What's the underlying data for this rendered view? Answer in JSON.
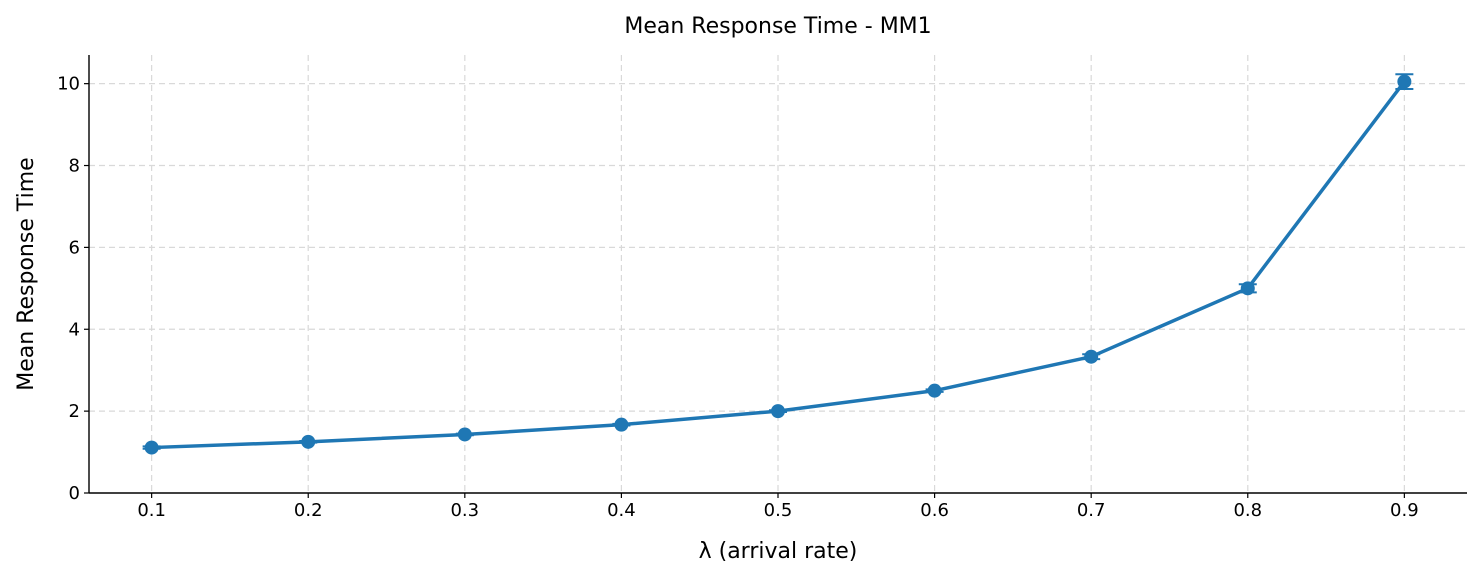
{
  "chart_data": {
    "type": "line",
    "title": "Mean Response Time - MM1",
    "xlabel": "λ (arrival rate)",
    "ylabel": "Mean Response Time",
    "x": [
      0.1,
      0.2,
      0.3,
      0.4,
      0.5,
      0.6,
      0.7,
      0.8,
      0.9
    ],
    "series": [
      {
        "values": [
          1.11,
          1.25,
          1.43,
          1.67,
          2.0,
          2.5,
          3.33,
          5.0,
          10.05
        ],
        "errors": [
          0.03,
          0.02,
          0.02,
          0.02,
          0.02,
          0.03,
          0.06,
          0.1,
          0.18
        ],
        "color": "#1f77b4"
      }
    ],
    "xlim": [
      0.06,
      0.94
    ],
    "ylim": [
      0,
      10.7
    ],
    "x_ticks": [
      "0.1",
      "0.2",
      "0.3",
      "0.4",
      "0.5",
      "0.6",
      "0.7",
      "0.8",
      "0.9"
    ],
    "y_ticks": [
      "0",
      "2",
      "4",
      "6",
      "8",
      "10"
    ],
    "grid": true
  }
}
